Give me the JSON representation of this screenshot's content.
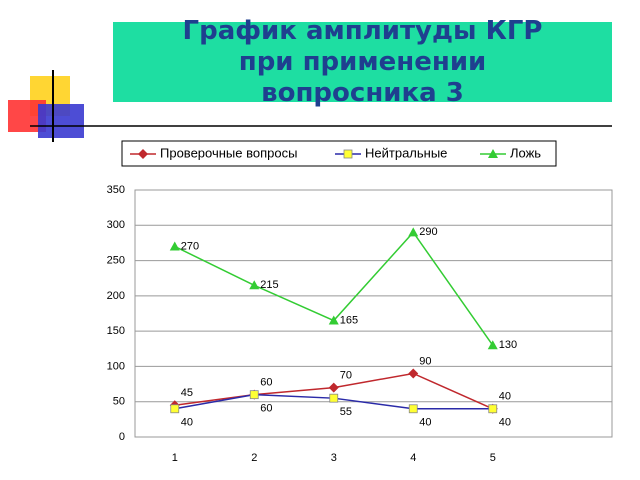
{
  "chart_data": {
    "type": "line",
    "title": "График амплитуды КГР при применении вопросника 3",
    "categories": [
      "1",
      "2",
      "3",
      "4",
      "5",
      null
    ],
    "series": [
      {
        "name": "Проверочные вопросы",
        "color": "#c0282d",
        "marker": "diamond",
        "marker_color": "#c0282d",
        "values": [
          45,
          60,
          70,
          90,
          40,
          null
        ]
      },
      {
        "name": "Нейтральные",
        "color": "#2a2aa8",
        "marker": "square",
        "marker_color": "#ffff33",
        "values": [
          40,
          60,
          55,
          40,
          40,
          null
        ]
      },
      {
        "name": "Ложь",
        "color": "#33cc33",
        "marker": "triangle",
        "marker_color": "#33cc33",
        "values": [
          270,
          215,
          165,
          290,
          130,
          null
        ]
      }
    ],
    "ylim": [
      0,
      350
    ],
    "yticks": [
      0,
      50,
      100,
      150,
      200,
      250,
      300,
      350
    ],
    "grid": true,
    "legend": "top"
  }
}
